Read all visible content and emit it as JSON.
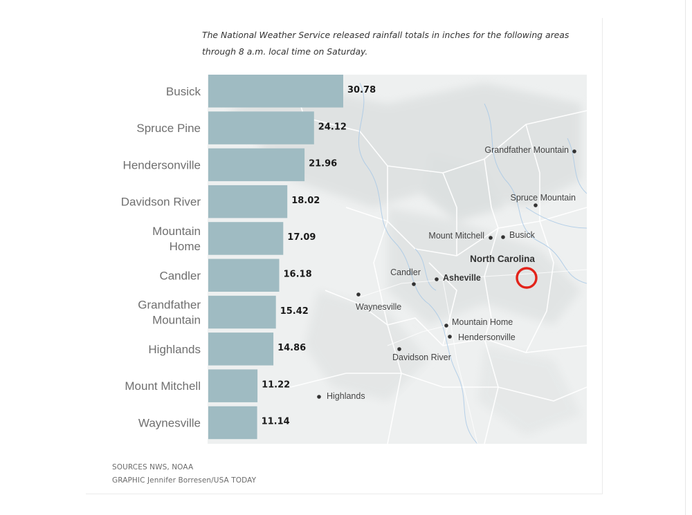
{
  "subtitle": "The National Weather Service released rainfall totals in inches for the following areas through 8 a.m. local time on Saturday.",
  "footer": {
    "sources": "SOURCES NWS, NOAA",
    "graphic": "GRAPHIC Jennifer Borresen/USA TODAY"
  },
  "colors": {
    "bar": "#9fbbc2",
    "map": "#eef0f0",
    "marker": "#e2231a"
  },
  "chart_data": {
    "type": "bar",
    "orientation": "horizontal",
    "categories": [
      [
        "Busick"
      ],
      [
        "Spruce Pine"
      ],
      [
        "Hendersonville"
      ],
      [
        "Davidson River"
      ],
      [
        "Mountain",
        "Home"
      ],
      [
        "Candler"
      ],
      [
        "Grandfather",
        "Mountain"
      ],
      [
        "Highlands"
      ],
      [
        "Mount Mitchell"
      ],
      [
        "Waynesville"
      ]
    ],
    "values": [
      30.78,
      24.12,
      21.96,
      18.02,
      17.09,
      16.18,
      15.42,
      14.86,
      11.22,
      11.14
    ],
    "value_labels": [
      "30.78",
      "24.12",
      "21.96",
      "18.02",
      "17.09",
      "16.18",
      "15.42",
      "14.86",
      "11.22",
      "11.14"
    ],
    "unit": "inches",
    "xlim": [
      0,
      30.78
    ],
    "grid": false,
    "legend": "none"
  },
  "map": {
    "state_label": "North Carolina",
    "places": [
      {
        "name": "Grandfather Mountain",
        "anchor": "end",
        "bold": false
      },
      {
        "name": "Spruce Mountain",
        "anchor": "end",
        "bold": false
      },
      {
        "name": "Mount Mitchell",
        "anchor": "end",
        "bold": false
      },
      {
        "name": "Busick",
        "anchor": "start",
        "bold": false
      },
      {
        "name": "Candler",
        "anchor": "middle",
        "bold": false
      },
      {
        "name": "Asheville",
        "anchor": "start",
        "bold": true
      },
      {
        "name": "Waynesville",
        "anchor": "start",
        "bold": false
      },
      {
        "name": "Mountain Home",
        "anchor": "start",
        "bold": false
      },
      {
        "name": "Hendersonville",
        "anchor": "start",
        "bold": false
      },
      {
        "name": "Davidson River",
        "anchor": "start",
        "bold": false
      },
      {
        "name": "Highlands",
        "anchor": "start",
        "bold": false
      }
    ]
  }
}
